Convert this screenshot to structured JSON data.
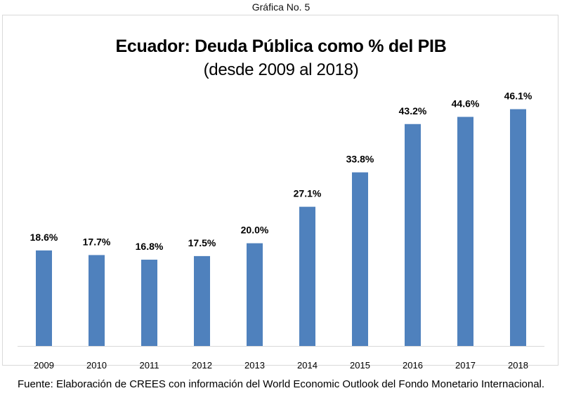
{
  "caption": "Gráfica No. 5",
  "source": "Fuente: Elaboración de CREES con información del World Economic Outlook del Fondo Monetario Internacional.",
  "chart_data": {
    "type": "bar",
    "title": "Ecuador: Deuda Pública como % del PIB",
    "subtitle": "(desde 2009 al 2018)",
    "xlabel": "",
    "ylabel": "",
    "categories": [
      "2009",
      "2010",
      "2011",
      "2012",
      "2013",
      "2014",
      "2015",
      "2016",
      "2017",
      "2018"
    ],
    "values": [
      18.6,
      17.7,
      16.8,
      17.5,
      20.0,
      27.1,
      33.8,
      43.2,
      44.6,
      46.1
    ],
    "data_labels": [
      "18.6%",
      "17.7%",
      "16.8%",
      "17.5%",
      "20.0%",
      "27.1%",
      "33.8%",
      "43.2%",
      "44.6%",
      "46.1%"
    ],
    "ylim": [
      0,
      50
    ],
    "grid": false,
    "legend": "none",
    "bar_color": "#4f81bd"
  }
}
